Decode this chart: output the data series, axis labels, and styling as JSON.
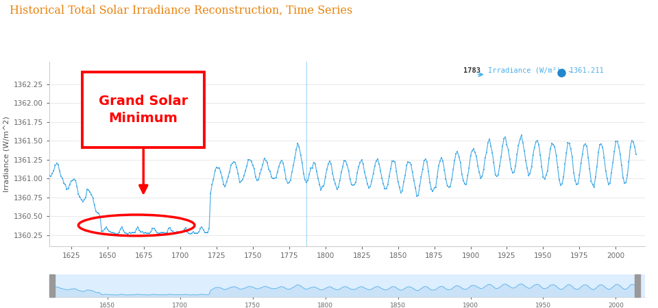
{
  "title": "Historical Total Solar Irradiance Reconstruction, Time Series",
  "title_color": "#E8820C",
  "ylabel": "Irradiance (W/m^2)",
  "xlim": [
    1610,
    2020
  ],
  "ylim": [
    1360.1,
    1362.55
  ],
  "yticks": [
    1360.25,
    1360.5,
    1360.75,
    1361.0,
    1361.25,
    1361.5,
    1361.75,
    1362.0,
    1362.25
  ],
  "xticks": [
    1625,
    1650,
    1675,
    1700,
    1725,
    1750,
    1775,
    1800,
    1825,
    1850,
    1875,
    1900,
    1925,
    1950,
    1975,
    2000
  ],
  "line_color": "#4baee8",
  "marker_color": "#4baee8",
  "bg_color": "#ffffff",
  "grid_color": "#e8e8e8",
  "annotation_text": "Grand Solar\nMinimum",
  "vertical_line_x": 1787,
  "nav_bg": "#ddeeff",
  "nav_highlight": "#c5dff7"
}
